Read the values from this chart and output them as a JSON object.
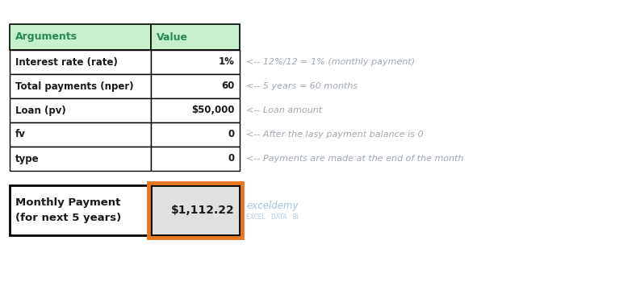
{
  "header_row": [
    "Arguments",
    "Value"
  ],
  "table_rows": [
    [
      "Interest rate (rate)",
      "1%"
    ],
    [
      "Total payments (nper)",
      "60"
    ],
    [
      "Loan (pv)",
      "$50,000"
    ],
    [
      "fv",
      "0"
    ],
    [
      "type",
      "0"
    ]
  ],
  "annotations": [
    "<-- 12%/12 = 1% (monthly payment)",
    "<-- 5 years = 60 months",
    "<-- Loan amount",
    "<-- After the lasy payment balance is 0",
    "<-- Payments are made at the end of the month"
  ],
  "result_label": "Monthly Payment\n(for next 5 years)",
  "result_value": "$1,112.22",
  "header_bg": "#c6efce",
  "table_bg": "#ffffff",
  "result_value_bg": "#e0e0e0",
  "border_color": "#000000",
  "orange_border": "#e87722",
  "annotation_color": "#a0a8b0",
  "text_color": "#1a1a1a",
  "annotation_fontsize": 8.0,
  "table_fontsize": 8.5,
  "header_fontsize": 9.0,
  "result_label_fontsize": 9.5,
  "result_value_fontsize": 10.0,
  "watermark_color": "#90b8d8",
  "fig_w": 7.67,
  "fig_h": 3.55,
  "dpi": 100
}
